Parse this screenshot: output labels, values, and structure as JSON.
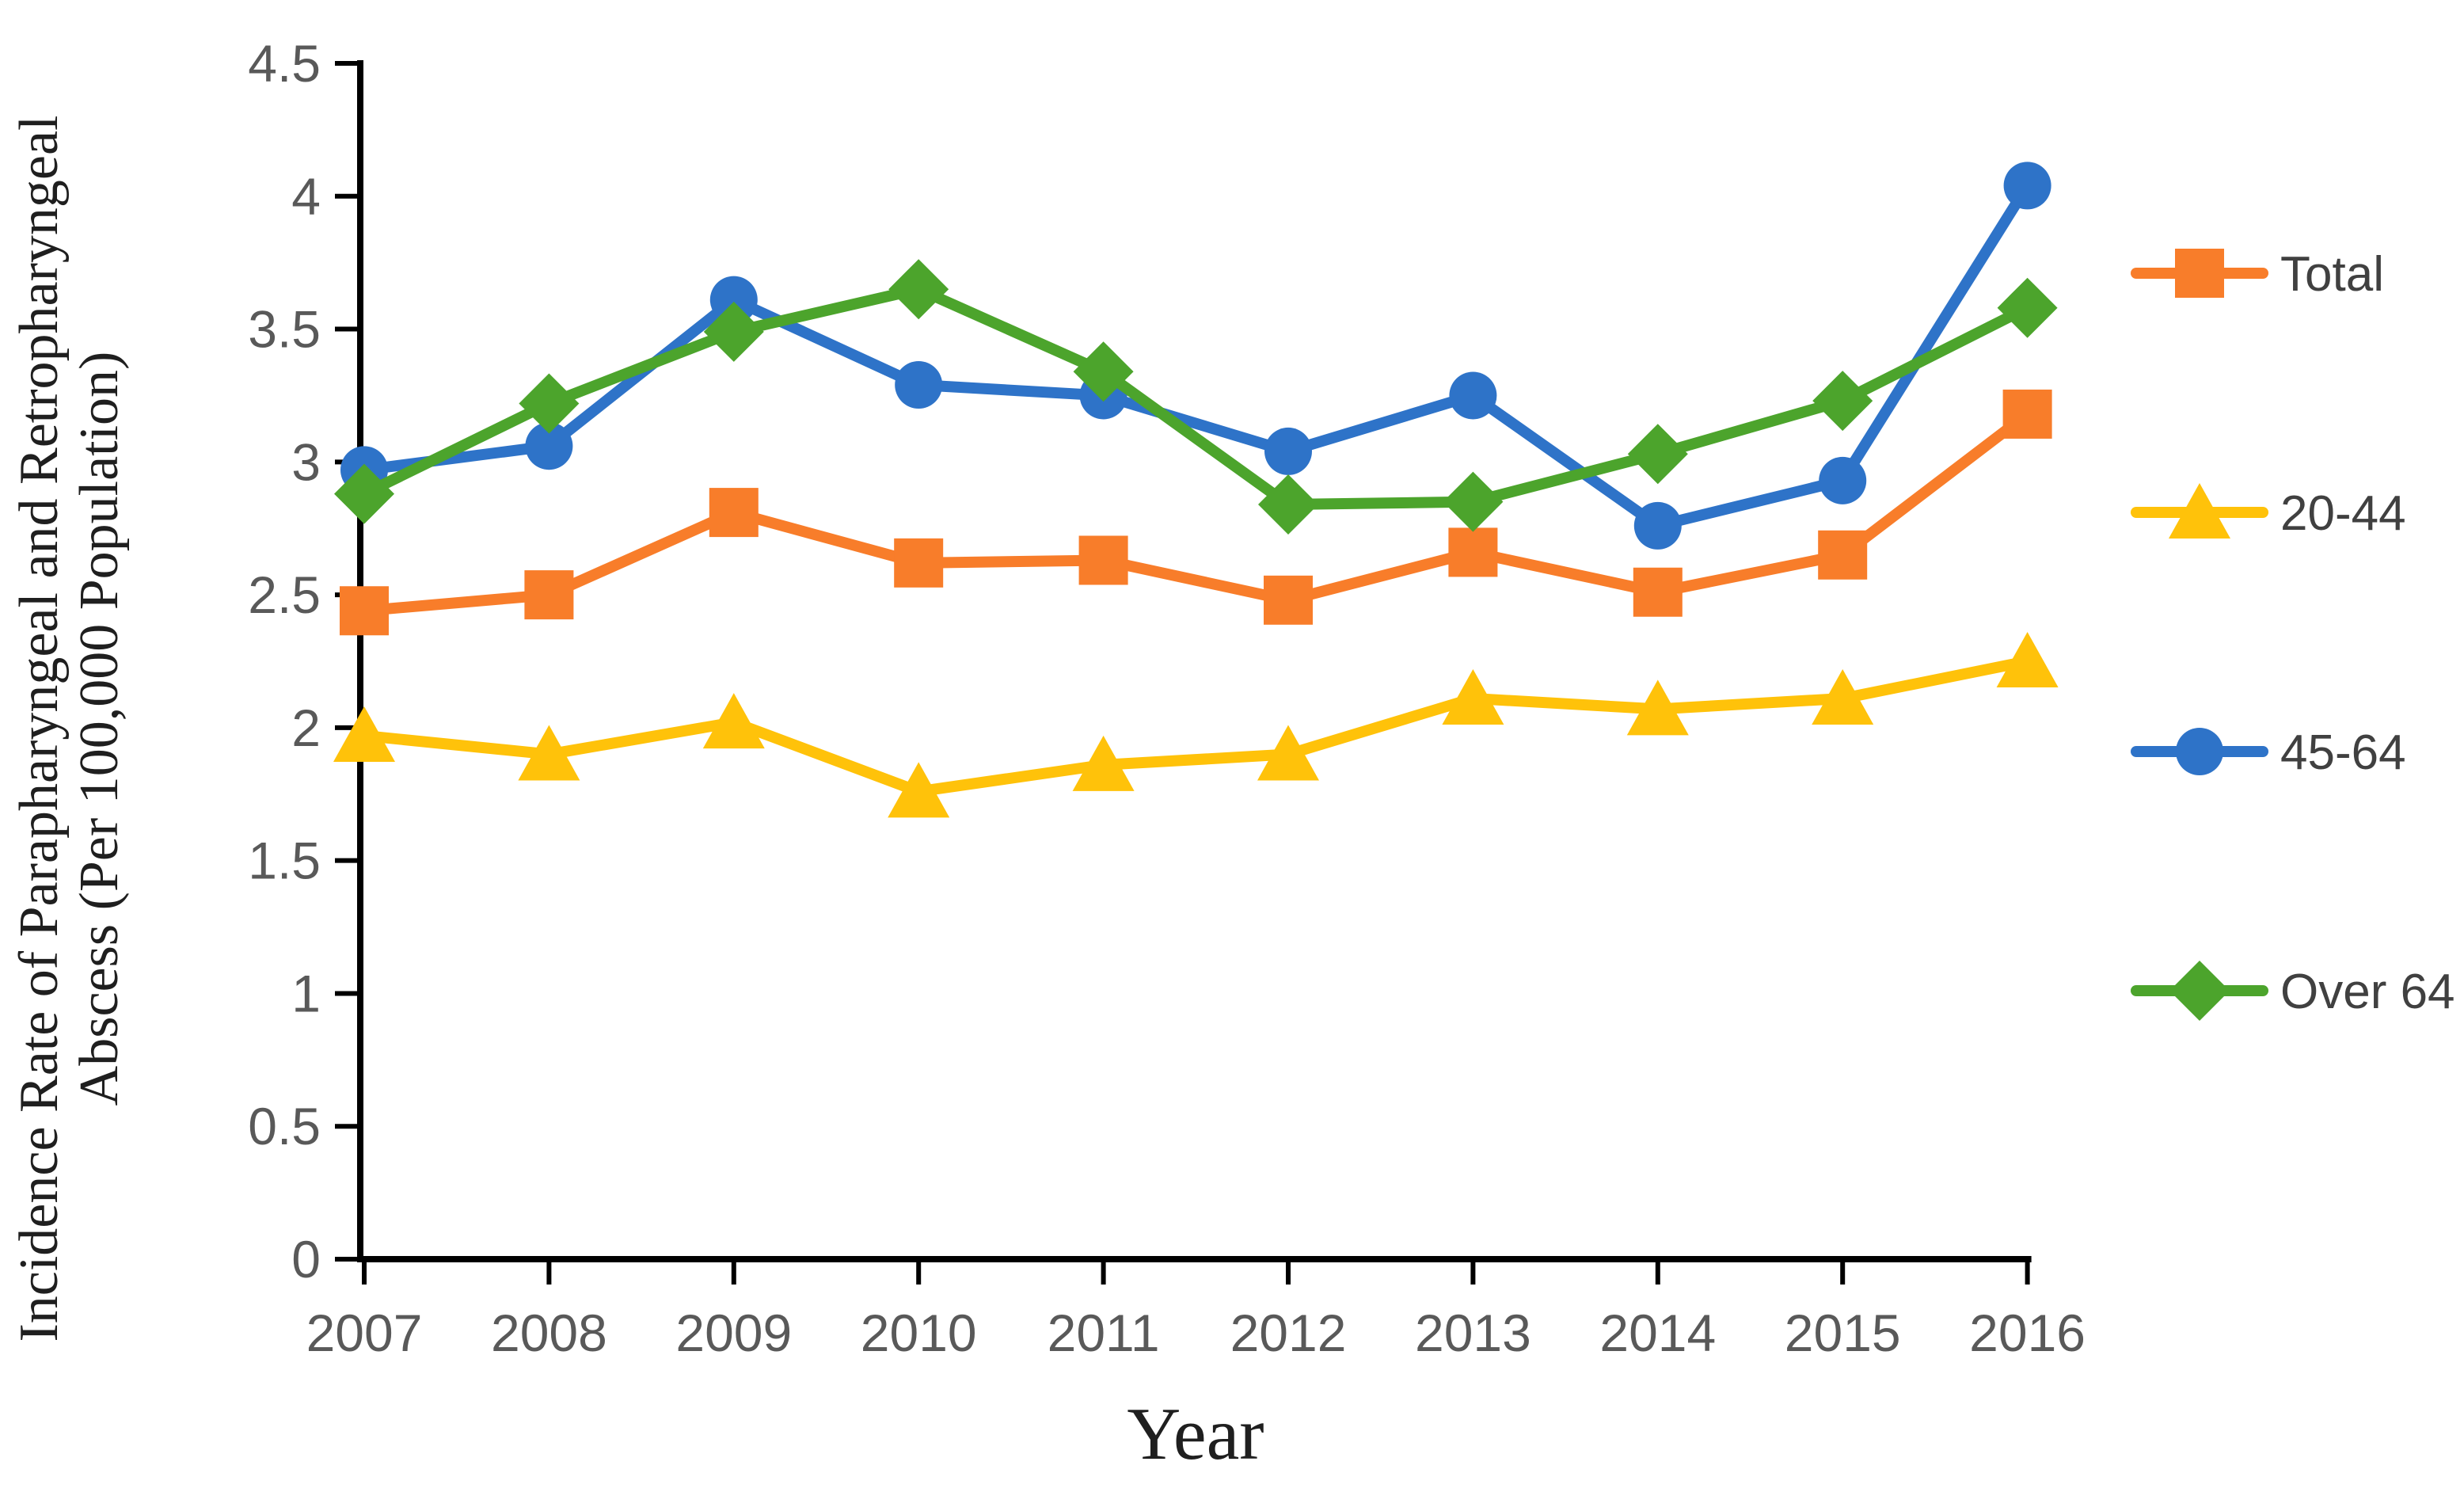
{
  "chart_data": {
    "type": "line",
    "title": "",
    "xlabel": "Year",
    "ylabel": "Incidence Rate of Parapharyngeal and Retropharyngeal Abscess (Per 100,000 Population)",
    "ylabel_line1": "Incidence Rate of Parapharyngeal and Retropharyngeal",
    "ylabel_line2": "Abscess (Per 100,000 Population)",
    "categories": [
      "2007",
      "2008",
      "2009",
      "2010",
      "2011",
      "2012",
      "2013",
      "2014",
      "2015",
      "2016"
    ],
    "series": [
      {
        "name": "Total",
        "marker": "square",
        "color": "#F87D2A",
        "values": [
          2.44,
          2.5,
          2.81,
          2.62,
          2.63,
          2.48,
          2.66,
          2.51,
          2.65,
          3.18
        ]
      },
      {
        "name": "20-44",
        "marker": "triangle",
        "color": "#FFC20A",
        "values": [
          1.97,
          1.9,
          2.02,
          1.76,
          1.86,
          1.9,
          2.11,
          2.07,
          2.11,
          2.25
        ]
      },
      {
        "name": "45-64",
        "marker": "circle",
        "color": "#2E73C8",
        "values": [
          2.97,
          3.06,
          3.61,
          3.29,
          3.25,
          3.04,
          3.25,
          2.76,
          2.93,
          4.04
        ]
      },
      {
        "name": "Over 64",
        "marker": "diamond",
        "color": "#4CA42C",
        "values": [
          2.88,
          3.22,
          3.49,
          3.65,
          3.34,
          2.84,
          2.85,
          3.03,
          3.23,
          3.58
        ]
      }
    ],
    "ylim": [
      0,
      4.5
    ],
    "ytick_step": 0.5,
    "yticks": [
      "0",
      "0.5",
      "1",
      "1.5",
      "2",
      "2.5",
      "3",
      "3.5",
      "4",
      "4.5"
    ],
    "grid": false,
    "legend_position": "right",
    "axis_color": "#000000",
    "tick_label_color": "#595959",
    "legend_text_color": "#404040"
  }
}
